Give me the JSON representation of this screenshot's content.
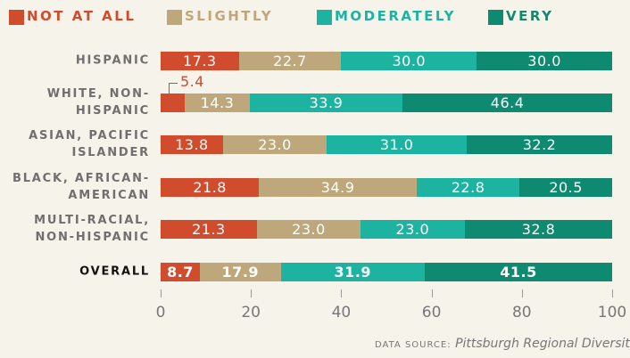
{
  "chart_data": {
    "type": "stacked-bar-horizontal",
    "categories": [
      "HISPANIC",
      "WHITE, NON-HISPANIC",
      "ASIAN, PACIFIC ISLANDER",
      "BLACK, AFRICAN-AMERICAN",
      "MULTI-RACIAL, NON-HISPANIC",
      "OVERALL"
    ],
    "series": [
      {
        "name": "NOT AT ALL",
        "color": "#d14b2d",
        "values": [
          17.3,
          5.4,
          13.8,
          21.8,
          21.3,
          8.7
        ],
        "value_labels": [
          "17.3",
          "5.4",
          "13.8",
          "21.8",
          "21.3",
          "8.7"
        ]
      },
      {
        "name": "SLIGHTLY",
        "color": "#bea87b",
        "values": [
          22.7,
          14.3,
          23.0,
          34.9,
          23.0,
          17.9
        ],
        "value_labels": [
          "22.7",
          "14.3",
          "23.0",
          "34.9",
          "23.0",
          "17.9"
        ]
      },
      {
        "name": "MODERATELY",
        "color": "#1db3a1",
        "values": [
          30.0,
          33.9,
          31.0,
          22.8,
          23.0,
          31.9
        ],
        "value_labels": [
          "30.0",
          "33.9",
          "31.0",
          "22.8",
          "23.0",
          "31.9"
        ]
      },
      {
        "name": "VERY",
        "color": "#0d8a6f",
        "values": [
          30.0,
          46.4,
          32.2,
          20.5,
          32.8,
          41.5
        ],
        "value_labels": [
          "30.0",
          "46.4",
          "32.2",
          "20.5",
          "32.8",
          "41.5"
        ]
      }
    ],
    "xlim": [
      0,
      100
    ],
    "xticks": [
      0,
      20,
      40,
      60,
      80,
      100
    ],
    "source_label": "DATA SOURCE:",
    "source": "Pittsburgh Regional Diversity Survey"
  }
}
